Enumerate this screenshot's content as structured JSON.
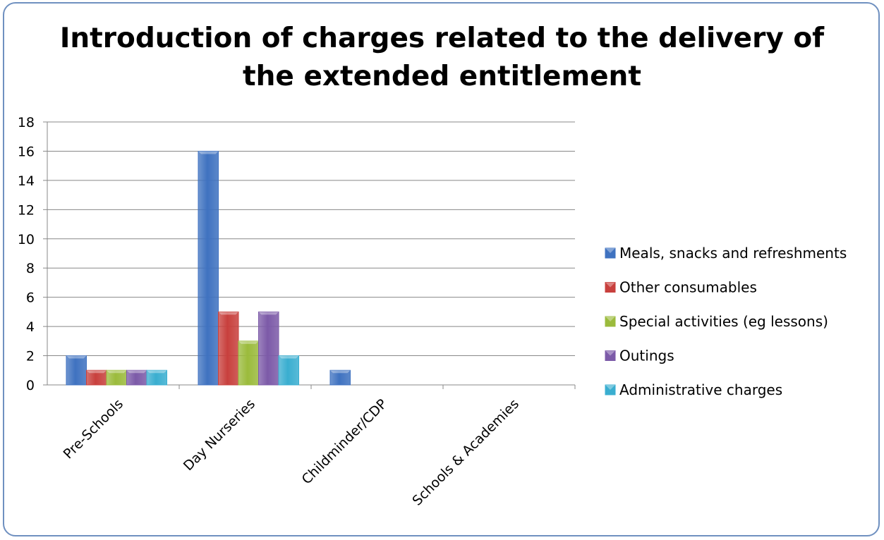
{
  "chart_data": {
    "type": "bar",
    "title_lines": [
      "Introduction of charges related to the delivery of",
      "the extended entitlement"
    ],
    "categories": [
      "Pre-Schools",
      "Day Nurseries",
      "Childminder/CDP",
      "Schools & Academies"
    ],
    "series": [
      {
        "name": "Meals, snacks and refreshments",
        "color": "#3f72c0",
        "values": [
          2,
          16,
          1,
          0
        ]
      },
      {
        "name": "Other consumables",
        "color": "#c8403d",
        "values": [
          1,
          5,
          0,
          0
        ]
      },
      {
        "name": "Special activities (eg lessons)",
        "color": "#9bbb3c",
        "values": [
          1,
          3,
          0,
          0
        ]
      },
      {
        "name": "Outings",
        "color": "#7c5aa8",
        "values": [
          1,
          5,
          0,
          0
        ]
      },
      {
        "name": "Administrative charges",
        "color": "#3aaed0",
        "values": [
          1,
          2,
          0,
          0
        ]
      }
    ],
    "ylim": [
      0,
      18
    ],
    "yticks": [
      0,
      2,
      4,
      6,
      8,
      10,
      12,
      14,
      16,
      18
    ],
    "grid": true,
    "legend_position": "right"
  }
}
